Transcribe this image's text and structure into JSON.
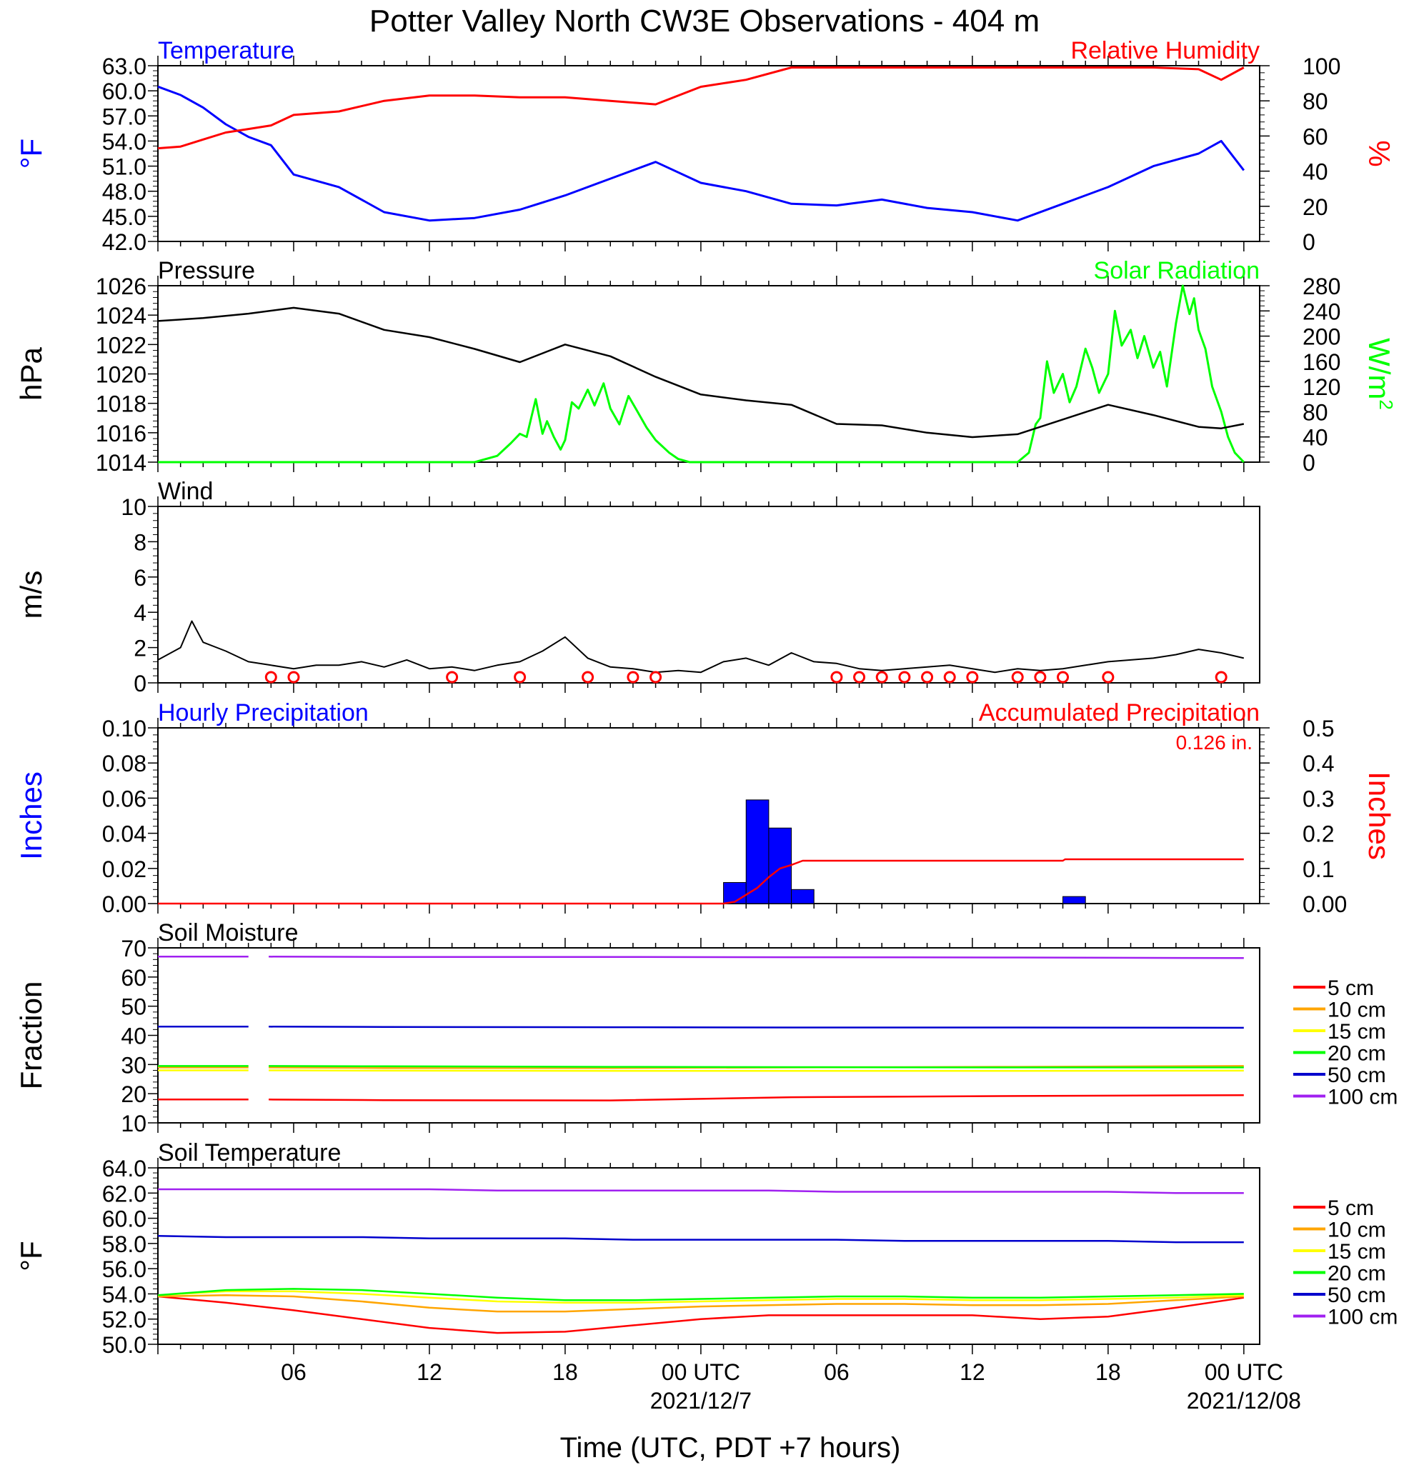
{
  "title": "Potter Valley North CW3E Observations - 404 m",
  "xaxis": {
    "tick_labels": [
      "06",
      "12",
      "18",
      "00 UTC",
      "06",
      "12",
      "18",
      "00 UTC"
    ],
    "date_labels": [
      "2021/12/7",
      "2021/12/08"
    ],
    "label": "Time (UTC, PDT +7 hours)"
  },
  "colors": {
    "blue": "#0000ff",
    "red": "#ff0000",
    "green": "#00ff00",
    "black": "#000000",
    "soil": [
      "#ff0000",
      "#ffa500",
      "#ffff00",
      "#00ff00",
      "#0000cd",
      "#a020f0"
    ]
  },
  "chart_data": [
    {
      "type": "line",
      "title_left": "Temperature",
      "title_right": "Relative Humidity",
      "ylabel_left": "°F",
      "ylabel_right": "%",
      "ylim_left": [
        42.0,
        63.0
      ],
      "ylim_right": [
        0,
        100
      ],
      "yticks_left": [
        "42.0",
        "45.0",
        "48.0",
        "51.0",
        "54.0",
        "57.0",
        "60.0",
        "63.0"
      ],
      "yticks_right": [
        "0",
        "20",
        "40",
        "60",
        "80",
        "100"
      ],
      "x_hours": [
        0,
        1,
        2,
        3,
        4,
        5,
        6,
        8,
        10,
        12,
        14,
        16,
        18,
        20,
        22,
        24,
        26,
        28,
        30,
        32,
        34,
        36,
        38,
        40,
        42,
        44,
        46,
        47,
        48
      ],
      "series": [
        {
          "name": "Temperature",
          "axis": "left",
          "color": "blue",
          "values": [
            60.5,
            59.5,
            58.0,
            56.0,
            54.5,
            53.5,
            50.0,
            48.5,
            45.5,
            44.5,
            44.8,
            45.8,
            47.5,
            49.5,
            51.5,
            49.0,
            48.0,
            46.5,
            46.3,
            47.0,
            46.0,
            45.5,
            44.5,
            46.5,
            48.5,
            51.0,
            52.5,
            54.0,
            50.5
          ]
        },
        {
          "name": "Relative Humidity",
          "axis": "right",
          "color": "red",
          "values": [
            53,
            54,
            58,
            62,
            64,
            66,
            72,
            74,
            80,
            83,
            83,
            82,
            82,
            80,
            78,
            88,
            92,
            99,
            99,
            99,
            99,
            99,
            99,
            99,
            99,
            99,
            98,
            92,
            99
          ]
        }
      ]
    },
    {
      "type": "line",
      "title_left": "Pressure",
      "title_right": "Solar Radiation",
      "ylabel_left": "hPa",
      "ylabel_right": "W/m",
      "ylabel_right_sup": "2",
      "ylim_left": [
        1014,
        1026
      ],
      "ylim_right": [
        0,
        280
      ],
      "yticks_left": [
        "1014",
        "1016",
        "1018",
        "1020",
        "1022",
        "1024",
        "1026"
      ],
      "yticks_right": [
        "0",
        "40",
        "80",
        "120",
        "160",
        "200",
        "240",
        "280"
      ],
      "x_hours": [
        0,
        2,
        4,
        6,
        8,
        10,
        12,
        14,
        16,
        18,
        20,
        22,
        24,
        26,
        28,
        30,
        32,
        34,
        36,
        38,
        40,
        42,
        44,
        46,
        47,
        48
      ],
      "series": [
        {
          "name": "Pressure",
          "axis": "left",
          "color": "black",
          "values": [
            1023.6,
            1023.8,
            1024.1,
            1024.5,
            1024.1,
            1023.0,
            1022.5,
            1021.7,
            1020.8,
            1022.0,
            1021.2,
            1019.8,
            1018.6,
            1018.2,
            1017.9,
            1016.6,
            1016.5,
            1016.0,
            1015.7,
            1015.9,
            1016.9,
            1017.9,
            1017.2,
            1016.4,
            1016.3,
            1016.6
          ]
        }
      ],
      "solar": {
        "name": "Solar Radiation",
        "axis": "right",
        "color": "green",
        "x_hours": [
          0,
          14.0,
          15.0,
          15.6,
          16.0,
          16.3,
          16.5,
          16.7,
          17.0,
          17.2,
          17.5,
          17.8,
          18.0,
          18.3,
          18.6,
          19.0,
          19.3,
          19.7,
          20.0,
          20.4,
          20.8,
          21.2,
          21.6,
          22.0,
          22.6,
          23.0,
          23.5,
          24.0,
          38.0,
          38.5,
          38.8,
          39.0,
          39.3,
          39.6,
          40.0,
          40.3,
          40.6,
          41.0,
          41.3,
          41.6,
          42.0,
          42.3,
          42.6,
          43.0,
          43.3,
          43.6,
          44.0,
          44.3,
          44.6,
          45.0,
          45.3,
          45.6,
          45.8,
          46.0,
          46.3,
          46.6,
          47.0,
          47.3,
          47.6,
          48.0
        ],
        "values": [
          0,
          0,
          10,
          30,
          45,
          40,
          70,
          100,
          45,
          65,
          40,
          20,
          35,
          95,
          85,
          115,
          90,
          125,
          85,
          60,
          105,
          80,
          55,
          35,
          15,
          5,
          0,
          0,
          0,
          15,
          60,
          70,
          160,
          110,
          140,
          95,
          120,
          180,
          150,
          110,
          140,
          240,
          185,
          210,
          165,
          200,
          150,
          175,
          120,
          220,
          280,
          235,
          260,
          210,
          180,
          120,
          80,
          40,
          15,
          0
        ]
      }
    },
    {
      "type": "line",
      "title_left": "Wind",
      "ylabel_left": "m/s",
      "ylim_left": [
        0,
        10
      ],
      "yticks_left": [
        "0",
        "2",
        "4",
        "6",
        "8",
        "10"
      ],
      "x_hours": [
        0,
        1,
        1.5,
        2,
        3,
        4,
        5,
        6,
        7,
        8,
        9,
        10,
        11,
        12,
        13,
        14,
        15,
        16,
        17,
        18,
        19,
        20,
        21,
        22,
        23,
        24,
        25,
        26,
        27,
        28,
        29,
        30,
        31,
        32,
        33,
        34,
        35,
        36,
        37,
        38,
        39,
        40,
        41,
        42,
        43,
        44,
        45,
        46,
        47,
        48
      ],
      "series": [
        {
          "name": "Wind",
          "axis": "left",
          "color": "black",
          "values": [
            1.3,
            2.0,
            3.5,
            2.3,
            1.8,
            1.2,
            1.0,
            0.8,
            1.0,
            1.0,
            1.2,
            0.9,
            1.3,
            0.8,
            0.9,
            0.7,
            1.0,
            1.2,
            1.8,
            2.6,
            1.4,
            0.9,
            0.8,
            0.6,
            0.7,
            0.6,
            1.2,
            1.4,
            1.0,
            1.7,
            1.2,
            1.1,
            0.8,
            0.7,
            0.8,
            0.9,
            1.0,
            0.8,
            0.6,
            0.8,
            0.7,
            0.8,
            1.0,
            1.2,
            1.3,
            1.4,
            1.6,
            1.9,
            1.7,
            1.4
          ]
        }
      ],
      "calm_hours": [
        5,
        6,
        13,
        16,
        19,
        21,
        22,
        30,
        31,
        32,
        33,
        34,
        35,
        36,
        38,
        39,
        40,
        42,
        47
      ]
    },
    {
      "type": "bar",
      "title_left": "Hourly Precipitation",
      "title_right": "Accumulated Precipitation",
      "annotation": "0.126 in.",
      "ylabel_left": "Inches",
      "ylabel_right": "Inches",
      "ylim_left": [
        0,
        0.1
      ],
      "ylim_right": [
        0,
        0.5
      ],
      "yticks_left": [
        "0.00",
        "0.02",
        "0.04",
        "0.06",
        "0.08",
        "0.10"
      ],
      "yticks_right": [
        "0.00",
        "0.1",
        "0.2",
        "0.3",
        "0.4",
        "0.5"
      ],
      "bars": [
        {
          "x_hour": 25.5,
          "value": 0.012
        },
        {
          "x_hour": 26.5,
          "value": 0.059
        },
        {
          "x_hour": 27.5,
          "value": 0.043
        },
        {
          "x_hour": 28.5,
          "value": 0.008
        },
        {
          "x_hour": 40.5,
          "value": 0.004
        }
      ],
      "accumulated": {
        "x_hours": [
          0,
          25.0,
          25.5,
          26.0,
          26.5,
          27.0,
          27.5,
          28.0,
          28.5,
          40.0,
          40.1,
          48
        ],
        "values": [
          0,
          0,
          0.005,
          0.025,
          0.045,
          0.075,
          0.1,
          0.11,
          0.122,
          0.122,
          0.126,
          0.126
        ]
      }
    },
    {
      "type": "line",
      "title_left": "Soil Moisture",
      "ylabel_left": "Fraction",
      "ylim_left": [
        10,
        70
      ],
      "yticks_left": [
        "10",
        "20",
        "30",
        "40",
        "50",
        "60",
        "70"
      ],
      "gap_hours": [
        4.0,
        4.9
      ],
      "series": [
        {
          "name": "5 cm",
          "values": [
            18.0,
            17.8,
            17.7,
            18.8,
            19.2,
            19.5
          ]
        },
        {
          "name": "10 cm",
          "values": [
            29.0,
            28.8,
            28.8,
            29.0,
            29.2,
            29.5
          ]
        },
        {
          "name": "15 cm",
          "values": [
            28.0,
            27.9,
            27.8,
            27.8,
            27.8,
            27.9
          ]
        },
        {
          "name": "20 cm",
          "values": [
            29.5,
            29.4,
            29.2,
            29.1,
            29.0,
            29.0
          ]
        },
        {
          "name": "50 cm",
          "values": [
            43.0,
            42.9,
            42.8,
            42.7,
            42.7,
            42.6
          ]
        },
        {
          "name": "100 cm",
          "values": [
            67.0,
            66.9,
            66.9,
            66.8,
            66.7,
            66.5
          ]
        }
      ],
      "x_hours": [
        0,
        10,
        20,
        28,
        38,
        48
      ]
    },
    {
      "type": "line",
      "title_left": "Soil Temperature",
      "ylabel_left": "°F",
      "ylim_left": [
        50.0,
        64.0
      ],
      "yticks_left": [
        "50.0",
        "52.0",
        "54.0",
        "56.0",
        "58.0",
        "60.0",
        "62.0",
        "64.0"
      ],
      "x_hours": [
        0,
        3,
        6,
        9,
        12,
        15,
        18,
        21,
        24,
        27,
        30,
        33,
        36,
        39,
        42,
        45,
        48
      ],
      "series": [
        {
          "name": "5 cm",
          "values": [
            53.8,
            53.3,
            52.7,
            52.0,
            51.3,
            50.9,
            51.0,
            51.5,
            52.0,
            52.3,
            52.3,
            52.3,
            52.3,
            52.0,
            52.2,
            52.9,
            53.7
          ]
        },
        {
          "name": "10 cm",
          "values": [
            53.8,
            53.9,
            53.8,
            53.4,
            52.9,
            52.6,
            52.6,
            52.8,
            53.0,
            53.1,
            53.2,
            53.2,
            53.1,
            53.1,
            53.2,
            53.5,
            53.8
          ]
        },
        {
          "name": "15 cm",
          "values": [
            53.9,
            54.2,
            54.2,
            54.0,
            53.7,
            53.4,
            53.3,
            53.3,
            53.4,
            53.5,
            53.6,
            53.6,
            53.5,
            53.5,
            53.6,
            53.7,
            53.9
          ]
        },
        {
          "name": "20 cm",
          "values": [
            53.9,
            54.3,
            54.4,
            54.3,
            54.0,
            53.7,
            53.5,
            53.5,
            53.6,
            53.7,
            53.8,
            53.8,
            53.7,
            53.7,
            53.8,
            53.9,
            54.0
          ]
        },
        {
          "name": "50 cm",
          "values": [
            58.6,
            58.5,
            58.5,
            58.5,
            58.4,
            58.4,
            58.4,
            58.3,
            58.3,
            58.3,
            58.3,
            58.2,
            58.2,
            58.2,
            58.2,
            58.1,
            58.1
          ]
        },
        {
          "name": "100 cm",
          "values": [
            62.3,
            62.3,
            62.3,
            62.3,
            62.3,
            62.2,
            62.2,
            62.2,
            62.2,
            62.2,
            62.1,
            62.1,
            62.1,
            62.1,
            62.1,
            62.0,
            62.0
          ]
        }
      ]
    }
  ],
  "legend_labels": [
    "5 cm",
    "10 cm",
    "15 cm",
    "20 cm",
    "50 cm",
    "100 cm"
  ]
}
